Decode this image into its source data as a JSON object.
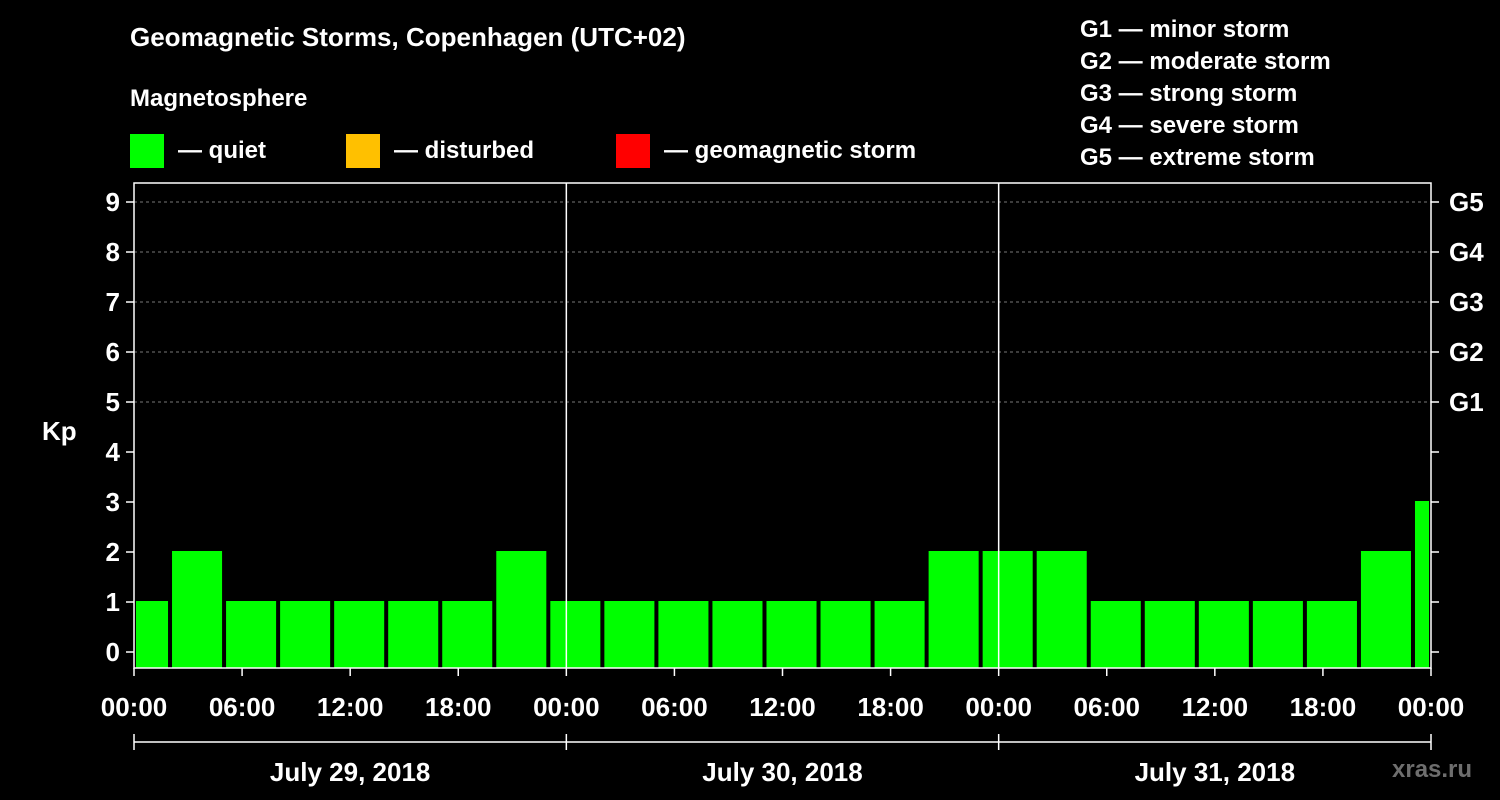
{
  "title": "Geomagnetic Storms, Copenhagen (UTC+02)",
  "legend": {
    "title": "Magnetosphere",
    "items": [
      {
        "label": "— quiet",
        "color": "#00ff00"
      },
      {
        "label": "— disturbed",
        "color": "#ffc000"
      },
      {
        "label": "— geomagnetic storm",
        "color": "#ff0000"
      }
    ]
  },
  "storm_scale": [
    "G1 — minor storm",
    "G2 — moderate storm",
    "G3 — strong storm",
    "G4 — severe storm",
    "G5 — extreme storm"
  ],
  "watermark": "xras.ru",
  "chart_data": {
    "type": "bar",
    "title": "Geomagnetic Storms, Copenhagen (UTC+02)",
    "ylabel": "Kp",
    "xlabel": "",
    "ylim": [
      0,
      9
    ],
    "yticks": [
      "0",
      "1",
      "2",
      "3",
      "4",
      "5",
      "6",
      "7",
      "8",
      "9"
    ],
    "right_ticks": [
      {
        "label": "G1",
        "kp": 5
      },
      {
        "label": "G2",
        "kp": 6
      },
      {
        "label": "G3",
        "kp": 7
      },
      {
        "label": "G4",
        "kp": 8
      },
      {
        "label": "G5",
        "kp": 9
      }
    ],
    "grid_levels": [
      5,
      6,
      7,
      8,
      9
    ],
    "xticks": [
      "00:00",
      "06:00",
      "12:00",
      "18:00",
      "00:00",
      "06:00",
      "12:00",
      "18:00",
      "00:00",
      "06:00",
      "12:00",
      "18:00",
      "00:00"
    ],
    "days": [
      "July 29, 2018",
      "July 30, 2018",
      "July 31, 2018"
    ],
    "bars": [
      {
        "start_hour": 0,
        "end_hour": 2,
        "kp": 1
      },
      {
        "start_hour": 2,
        "end_hour": 5,
        "kp": 2
      },
      {
        "start_hour": 5,
        "end_hour": 8,
        "kp": 1
      },
      {
        "start_hour": 8,
        "end_hour": 11,
        "kp": 1
      },
      {
        "start_hour": 11,
        "end_hour": 14,
        "kp": 1
      },
      {
        "start_hour": 14,
        "end_hour": 17,
        "kp": 1
      },
      {
        "start_hour": 17,
        "end_hour": 20,
        "kp": 1
      },
      {
        "start_hour": 20,
        "end_hour": 23,
        "kp": 2
      },
      {
        "start_hour": 23,
        "end_hour": 26,
        "kp": 1
      },
      {
        "start_hour": 26,
        "end_hour": 29,
        "kp": 1
      },
      {
        "start_hour": 29,
        "end_hour": 32,
        "kp": 1
      },
      {
        "start_hour": 32,
        "end_hour": 35,
        "kp": 1
      },
      {
        "start_hour": 35,
        "end_hour": 38,
        "kp": 1
      },
      {
        "start_hour": 38,
        "end_hour": 41,
        "kp": 1
      },
      {
        "start_hour": 41,
        "end_hour": 44,
        "kp": 1
      },
      {
        "start_hour": 44,
        "end_hour": 47,
        "kp": 2
      },
      {
        "start_hour": 47,
        "end_hour": 50,
        "kp": 2
      },
      {
        "start_hour": 50,
        "end_hour": 53,
        "kp": 2
      },
      {
        "start_hour": 53,
        "end_hour": 56,
        "kp": 1
      },
      {
        "start_hour": 56,
        "end_hour": 59,
        "kp": 1
      },
      {
        "start_hour": 59,
        "end_hour": 62,
        "kp": 1
      },
      {
        "start_hour": 62,
        "end_hour": 65,
        "kp": 1
      },
      {
        "start_hour": 65,
        "end_hour": 68,
        "kp": 1
      },
      {
        "start_hour": 68,
        "end_hour": 71,
        "kp": 2
      },
      {
        "start_hour": 71,
        "end_hour": 72,
        "kp": 3
      }
    ],
    "bar_color": "#00ff00",
    "total_hours": 72
  }
}
